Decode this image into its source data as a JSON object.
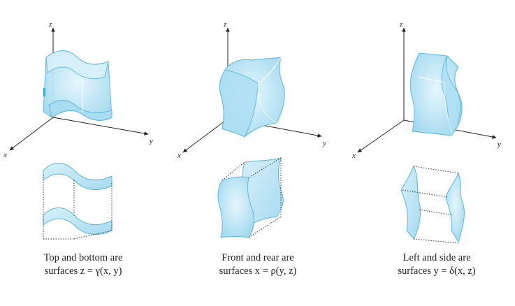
{
  "panels": [
    {
      "id": "top-bottom",
      "axes": {
        "x": "x",
        "y": "y",
        "z": "z"
      },
      "caption_line1": "Top and bottom are",
      "caption_line2": "surfaces z = γ(x, y)"
    },
    {
      "id": "front-rear",
      "axes": {
        "x": "x",
        "y": "y",
        "z": "z"
      },
      "caption_line1": "Front and rear are",
      "caption_line2": "surfaces x = ρ(y, z)"
    },
    {
      "id": "left-side",
      "axes": {
        "x": "x",
        "y": "y",
        "z": "z"
      },
      "caption_line1": "Left and side are",
      "caption_line2": "surfaces y = δ(x, z)"
    }
  ],
  "colors": {
    "surface_fill": "#bfe6f5",
    "surface_stroke": "#5cb8dc",
    "axis": "#222222",
    "dotted_edge": "#333333"
  }
}
